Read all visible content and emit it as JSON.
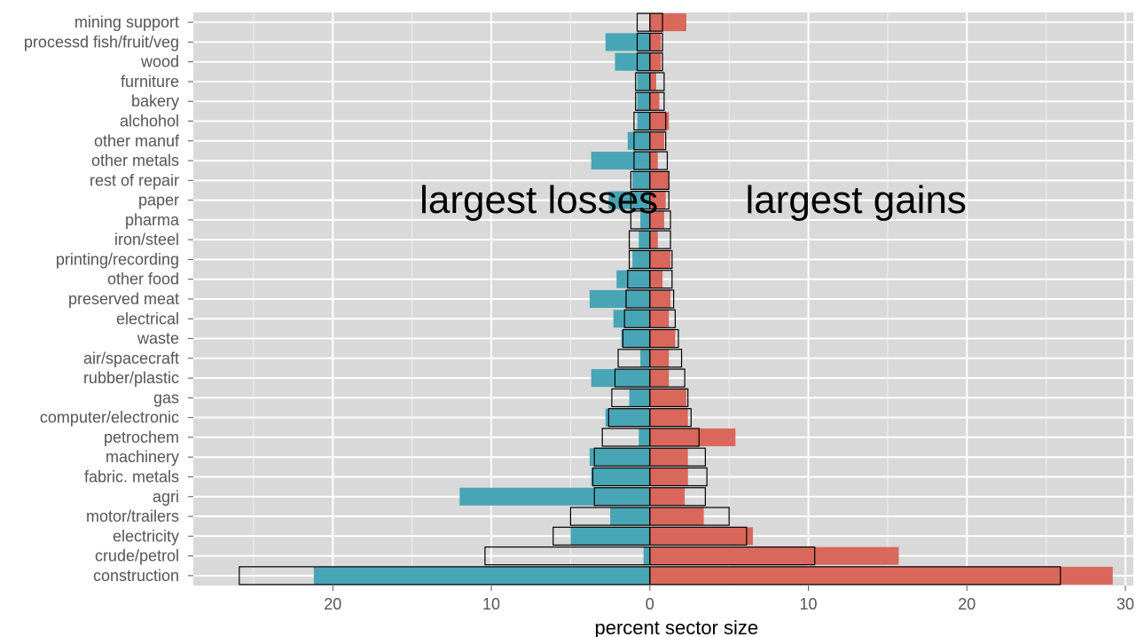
{
  "chart_data": {
    "type": "bar",
    "orientation": "horizontal-diverging",
    "title": "",
    "xlabel": "percent sector size",
    "ylabel": "",
    "xlim": [
      -28.8,
      30.5
    ],
    "x_ticks": [
      -20,
      -10,
      0,
      10,
      20,
      30
    ],
    "x_tick_labels": [
      "20",
      "10",
      "0",
      "10",
      "20",
      "30"
    ],
    "grid": true,
    "categories": [
      "mining support",
      "processd fish/fruit/veg",
      "wood",
      "furniture",
      "bakery",
      "alchohol",
      "other manuf",
      "other metals",
      "rest of repair",
      "paper",
      "pharma",
      "iron/steel",
      "printing/recording",
      "other food",
      "preserved meat",
      "electrical",
      "waste",
      "air/spacecraft",
      "rubber/plastic",
      "gas",
      "computer/electronic",
      "petrochem",
      "machinery",
      "fabric. metals",
      "agri",
      "motor/trailers",
      "electricity",
      "crude/petrol",
      "construction"
    ],
    "series": [
      {
        "values": [
          0.0,
          -2.8,
          -2.2,
          -0.8,
          -0.8,
          -0.8,
          -1.4,
          -3.7,
          -1.1,
          -2.6,
          -0.6,
          -0.7,
          -1.1,
          -2.1,
          -3.8,
          -2.3,
          -1.8,
          -0.6,
          -3.7,
          -1.3,
          -2.8,
          -0.7,
          -3.8,
          -3.7,
          -12.0,
          -2.5,
          -5.0,
          -0.4,
          -21.2
        ],
        "color": "#48a5b5"
      },
      {
        "values": [
          2.3,
          0.7,
          0.7,
          0.4,
          0.6,
          1.2,
          0.9,
          0.5,
          1.2,
          1.0,
          0.9,
          0.5,
          1.3,
          0.8,
          1.3,
          1.2,
          1.6,
          1.2,
          1.2,
          2.3,
          2.4,
          5.4,
          2.4,
          2.4,
          2.2,
          3.4,
          6.5,
          15.7,
          29.2
        ],
        "color": "#d9675c"
      },
      {
        "values": [
          -0.8,
          -0.8,
          -0.8,
          -0.9,
          -0.9,
          -1.0,
          -1.0,
          -1.0,
          -1.2,
          -1.2,
          -1.2,
          -1.3,
          -1.3,
          -1.4,
          -1.5,
          -1.6,
          -1.7,
          -2.0,
          -2.2,
          -2.4,
          -2.6,
          -3.0,
          -3.5,
          -3.6,
          -3.5,
          -5.0,
          -6.1,
          -10.4,
          -25.9
        ],
        "outline": "#000000"
      },
      {
        "values": [
          0.8,
          0.8,
          0.8,
          0.9,
          0.9,
          1.0,
          1.0,
          1.1,
          1.2,
          1.2,
          1.3,
          1.3,
          1.4,
          1.4,
          1.5,
          1.6,
          1.8,
          2.0,
          2.2,
          2.4,
          2.6,
          3.1,
          3.5,
          3.6,
          3.5,
          5.0,
          6.1,
          10.4,
          25.9
        ],
        "outline": "#000000"
      }
    ],
    "annotations": [
      {
        "text": "largest losses",
        "x": -7.0,
        "y": "paper"
      },
      {
        "text": "largest gains",
        "x": 13.0,
        "y": "paper"
      }
    ],
    "colors": {
      "panel": "#d9d9d9",
      "grid": "#ffffff",
      "loss": "#48a5b5",
      "gain": "#d9675c"
    }
  }
}
